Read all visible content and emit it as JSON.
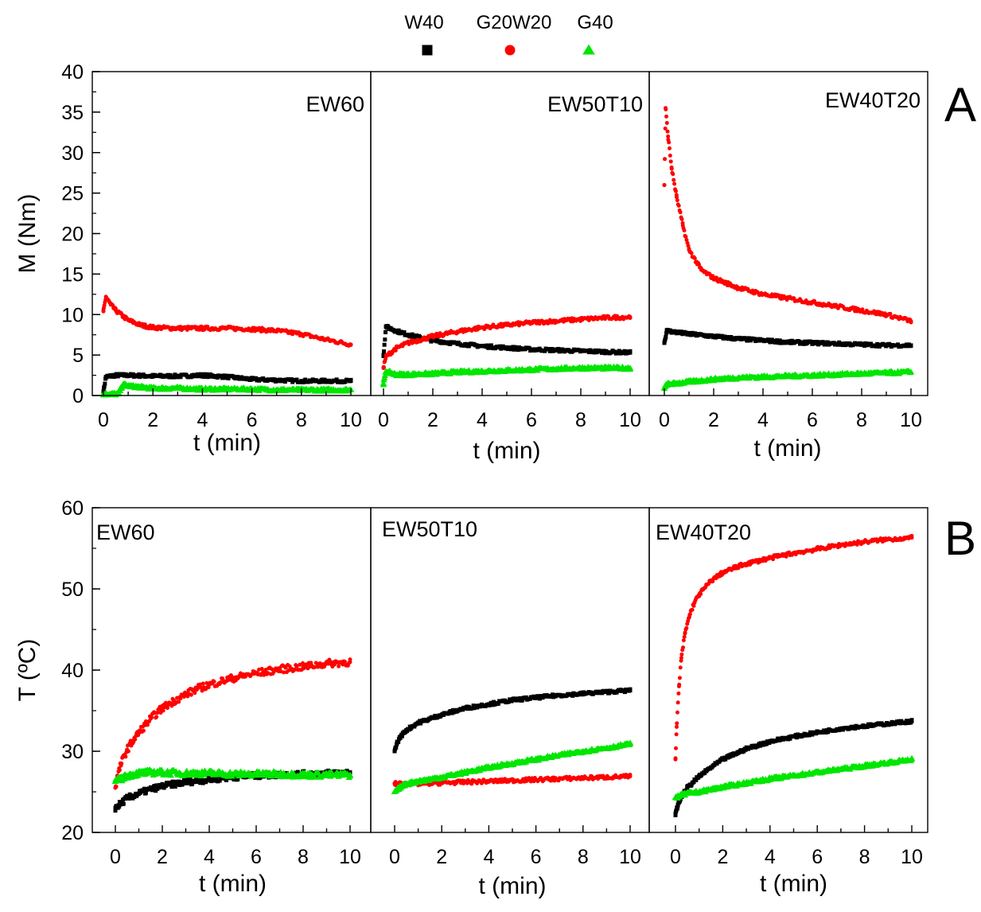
{
  "legend": {
    "entries": [
      {
        "label": "W40",
        "marker": "square",
        "color": "#000000"
      },
      {
        "label": "G20W20",
        "marker": "circle",
        "color": "#ff0000"
      },
      {
        "label": "G40",
        "marker": "triangle",
        "color": "#00e600"
      }
    ]
  },
  "rows": [
    {
      "letter": "A",
      "ylabel": "M (Nm)",
      "ylim": [
        0,
        40
      ],
      "yticks": [
        0,
        5,
        10,
        15,
        20,
        25,
        30,
        35,
        40
      ]
    },
    {
      "letter": "B",
      "ylabel": "T (ºC)",
      "ylim": [
        20,
        60
      ],
      "yticks": [
        20,
        30,
        40,
        50,
        60
      ]
    }
  ],
  "chart_data": [
    {
      "type": "scatter",
      "title": "EW60",
      "xlabel": "t (min)",
      "ylabel": "M (Nm)",
      "xlim": [
        0,
        10
      ],
      "ylim": [
        0,
        40
      ],
      "xticks": [
        0,
        2,
        4,
        6,
        8,
        10
      ],
      "series": [
        {
          "name": "W40",
          "color": "#000000",
          "marker": "square",
          "x": [
            0,
            0.1,
            0.5,
            1,
            2,
            3,
            4,
            5,
            6,
            7,
            8,
            9,
            10
          ],
          "y": [
            0.5,
            2.3,
            2.5,
            2.5,
            2.4,
            2.4,
            2.5,
            2.3,
            2.0,
            1.9,
            1.8,
            1.8,
            1.8
          ]
        },
        {
          "name": "G20W20",
          "color": "#ff0000",
          "marker": "circle",
          "x": [
            0,
            0.1,
            0.3,
            0.5,
            1,
            1.5,
            2,
            3,
            4,
            5,
            6,
            7,
            8,
            9,
            10
          ],
          "y": [
            10.4,
            12.2,
            11.2,
            10.5,
            9.3,
            8.7,
            8.4,
            8.3,
            8.3,
            8.3,
            8.2,
            8.0,
            7.6,
            6.9,
            6.3
          ]
        },
        {
          "name": "G40",
          "color": "#00e600",
          "marker": "triangle",
          "x": [
            0,
            0.3,
            0.6,
            0.8,
            1,
            2,
            3,
            4,
            5,
            6,
            7,
            8,
            9,
            10
          ],
          "y": [
            0.2,
            0.2,
            0.2,
            1.4,
            1.2,
            0.9,
            0.9,
            0.8,
            0.8,
            0.8,
            0.7,
            0.7,
            0.7,
            0.7
          ]
        }
      ]
    },
    {
      "type": "scatter",
      "title": "EW50T10",
      "xlabel": "t (min)",
      "ylabel": "M (Nm)",
      "xlim": [
        0,
        10
      ],
      "ylim": [
        0,
        40
      ],
      "xticks": [
        0,
        2,
        4,
        6,
        8,
        10
      ],
      "series": [
        {
          "name": "W40",
          "color": "#000000",
          "marker": "square",
          "x": [
            0,
            0.1,
            0.5,
            1,
            2,
            3,
            4,
            5,
            6,
            7,
            8,
            9,
            10
          ],
          "y": [
            5.0,
            8.5,
            8.0,
            7.5,
            6.8,
            6.4,
            6.1,
            5.9,
            5.7,
            5.6,
            5.5,
            5.4,
            5.3
          ]
        },
        {
          "name": "G20W20",
          "color": "#ff0000",
          "marker": "circle",
          "x": [
            0,
            0.1,
            0.5,
            1,
            2,
            3,
            4,
            5,
            6,
            7,
            8,
            9,
            10
          ],
          "y": [
            3.5,
            4.8,
            5.8,
            6.5,
            7.3,
            7.9,
            8.4,
            8.7,
            9.0,
            9.2,
            9.4,
            9.6,
            9.7
          ]
        },
        {
          "name": "G40",
          "color": "#00e600",
          "marker": "triangle",
          "x": [
            0,
            0.1,
            0.5,
            1,
            2,
            3,
            4,
            5,
            6,
            7,
            8,
            9,
            10
          ],
          "y": [
            1.5,
            3.0,
            2.6,
            2.6,
            2.7,
            2.9,
            3.0,
            3.1,
            3.2,
            3.3,
            3.4,
            3.4,
            3.4
          ]
        }
      ]
    },
    {
      "type": "scatter",
      "title": "EW40T20",
      "xlabel": "t (min)",
      "ylabel": "M (Nm)",
      "xlim": [
        0,
        10
      ],
      "ylim": [
        0,
        40
      ],
      "xticks": [
        0,
        2,
        4,
        6,
        8,
        10
      ],
      "series": [
        {
          "name": "W40",
          "color": "#000000",
          "marker": "square",
          "x": [
            0,
            0.1,
            0.5,
            1,
            2,
            3,
            4,
            5,
            6,
            7,
            8,
            9,
            10
          ],
          "y": [
            6.5,
            8.0,
            7.8,
            7.6,
            7.3,
            7.0,
            6.8,
            6.6,
            6.5,
            6.4,
            6.3,
            6.2,
            6.2
          ]
        },
        {
          "name": "G20W20",
          "color": "#ff0000",
          "marker": "circle",
          "x": [
            0,
            0.05,
            0.15,
            0.3,
            0.5,
            0.75,
            1,
            1.5,
            2,
            3,
            4,
            5,
            6,
            7,
            8,
            9,
            10
          ],
          "y": [
            26,
            35.5,
            32,
            28,
            24.5,
            21,
            18,
            15.5,
            14.5,
            13.3,
            12.5,
            12.0,
            11.5,
            11.0,
            10.5,
            10.0,
            9.2
          ]
        },
        {
          "name": "G40",
          "color": "#00e600",
          "marker": "triangle",
          "x": [
            0,
            0.1,
            0.5,
            1,
            2,
            3,
            4,
            5,
            6,
            7,
            8,
            9,
            10
          ],
          "y": [
            0.9,
            1.4,
            1.5,
            1.7,
            2.0,
            2.2,
            2.3,
            2.4,
            2.5,
            2.6,
            2.7,
            2.8,
            2.9
          ]
        }
      ]
    },
    {
      "type": "scatter",
      "title": "EW60",
      "xlabel": "t (min)",
      "ylabel": "T (ºC)",
      "xlim": [
        0,
        10
      ],
      "ylim": [
        20,
        60
      ],
      "xticks": [
        0,
        2,
        4,
        6,
        8,
        10
      ],
      "series": [
        {
          "name": "W40",
          "color": "#000000",
          "marker": "square",
          "x": [
            0,
            0.25,
            0.5,
            1,
            1.5,
            2,
            3,
            4,
            5,
            6,
            7,
            8,
            9,
            10
          ],
          "y": [
            23.0,
            23.6,
            24.2,
            24.8,
            25.3,
            25.7,
            26.2,
            26.5,
            26.8,
            27.0,
            27.1,
            27.2,
            27.3,
            27.4
          ]
        },
        {
          "name": "G20W20",
          "color": "#ff0000",
          "marker": "circle",
          "x": [
            0,
            0.1,
            0.25,
            0.5,
            0.75,
            1,
            1.5,
            2,
            2.5,
            3,
            3.5,
            4,
            5,
            6,
            7,
            8,
            9,
            10
          ],
          "y": [
            25.5,
            27,
            28.5,
            30.2,
            31.3,
            32.3,
            34,
            35.3,
            36.2,
            37,
            37.7,
            38.2,
            39,
            39.6,
            40.1,
            40.4,
            40.8,
            41.0
          ]
        },
        {
          "name": "G40",
          "color": "#00e600",
          "marker": "triangle",
          "x": [
            0,
            0.25,
            0.5,
            1,
            1.5,
            2,
            3,
            4,
            5,
            6,
            7,
            8,
            9,
            10
          ],
          "y": [
            26.3,
            26.6,
            27.0,
            27.3,
            27.4,
            27.4,
            27.3,
            27.3,
            27.2,
            27.2,
            27.2,
            27.1,
            27.1,
            27.1
          ]
        }
      ]
    },
    {
      "type": "scatter",
      "title": "EW50T10",
      "xlabel": "t (min)",
      "ylabel": "T (ºC)",
      "xlim": [
        0,
        10
      ],
      "ylim": [
        20,
        60
      ],
      "xticks": [
        0,
        2,
        4,
        6,
        8,
        10
      ],
      "series": [
        {
          "name": "W40",
          "color": "#000000",
          "marker": "square",
          "x": [
            0,
            0.1,
            0.25,
            0.5,
            1,
            1.5,
            2,
            3,
            4,
            5,
            6,
            7,
            8,
            9,
            10
          ],
          "y": [
            30.0,
            31.0,
            31.8,
            32.6,
            33.5,
            34.0,
            34.5,
            35.3,
            35.8,
            36.3,
            36.6,
            36.9,
            37.1,
            37.3,
            37.5
          ]
        },
        {
          "name": "G20W20",
          "color": "#ff0000",
          "marker": "circle",
          "x": [
            0,
            0.5,
            1,
            2,
            3,
            4,
            5,
            6,
            7,
            8,
            9,
            10
          ],
          "y": [
            26.0,
            26.0,
            26.0,
            26.1,
            26.2,
            26.3,
            26.4,
            26.5,
            26.6,
            26.7,
            26.8,
            26.9
          ]
        },
        {
          "name": "G40",
          "color": "#00e600",
          "marker": "triangle",
          "x": [
            0,
            0.25,
            0.5,
            1,
            2,
            3,
            4,
            5,
            6,
            7,
            8,
            9,
            10
          ],
          "y": [
            25.0,
            25.6,
            26.0,
            26.3,
            26.8,
            27.4,
            28.0,
            28.5,
            29.0,
            29.5,
            30.0,
            30.4,
            30.9
          ]
        }
      ]
    },
    {
      "type": "scatter",
      "title": "EW40T20",
      "xlabel": "t (min)",
      "ylabel": "T (ºC)",
      "xlim": [
        0,
        10
      ],
      "ylim": [
        20,
        60
      ],
      "xticks": [
        0,
        2,
        4,
        6,
        8,
        10
      ],
      "series": [
        {
          "name": "W40",
          "color": "#000000",
          "marker": "square",
          "x": [
            0,
            0.1,
            0.25,
            0.5,
            1,
            1.5,
            2,
            3,
            4,
            5,
            6,
            7,
            8,
            9,
            10
          ],
          "y": [
            22.3,
            23.3,
            24.4,
            25.5,
            26.9,
            28.0,
            29.0,
            30.3,
            31.2,
            31.8,
            32.3,
            32.8,
            33.1,
            33.4,
            33.7
          ]
        },
        {
          "name": "G20W20",
          "color": "#ff0000",
          "marker": "circle",
          "x": [
            0,
            0.05,
            0.15,
            0.25,
            0.4,
            0.6,
            0.8,
            1,
            1.5,
            2,
            2.5,
            3,
            4,
            5,
            6,
            7,
            8,
            9,
            10
          ],
          "y": [
            29,
            33,
            38,
            41.5,
            44.5,
            46.8,
            48.3,
            49.3,
            51,
            52,
            52.6,
            53.1,
            53.8,
            54.4,
            54.9,
            55.4,
            55.8,
            56.1,
            56.3
          ]
        },
        {
          "name": "G40",
          "color": "#00e600",
          "marker": "triangle",
          "x": [
            0,
            0.25,
            0.5,
            1,
            2,
            3,
            4,
            5,
            6,
            7,
            8,
            9,
            10
          ],
          "y": [
            24.3,
            24.6,
            24.8,
            25.0,
            25.6,
            26.1,
            26.6,
            27.0,
            27.4,
            27.8,
            28.2,
            28.6,
            29.0
          ]
        }
      ]
    }
  ]
}
